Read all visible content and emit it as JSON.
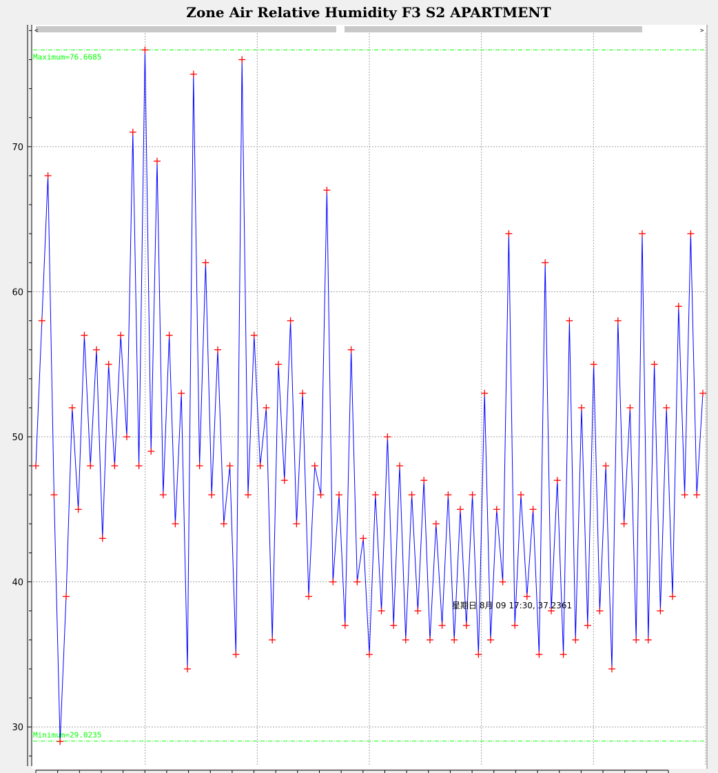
{
  "window": {
    "title": "Zone Air Relative Humidity  F3 S2 APARTMENT"
  },
  "scrollbar": {
    "left_arrow": "<",
    "right_arrow": ">"
  },
  "colors": {
    "series": "#0000ff",
    "marker": "#ff0000",
    "reference": "#00ff00",
    "grid": "#a0a0a0",
    "plot_background": "#ffffff"
  },
  "chart_data": {
    "type": "line",
    "title": "Zone Air Relative Humidity  F3 S2 APARTMENT",
    "xlabel": "",
    "ylabel": "",
    "ylim": [
      27.3,
      78.4
    ],
    "yticks": [
      30,
      40,
      50,
      60,
      70
    ],
    "grid": true,
    "marker": "+",
    "reference_lines": [
      {
        "label": "Maximum=76.6685",
        "value": 76.6685
      },
      {
        "label": "Minimum=29.0235",
        "value": 29.0235
      }
    ],
    "cursor_readout": "星期日 8月 09 17:30, 37.2361",
    "series": [
      {
        "values": [
          48,
          58,
          68,
          46,
          29.0,
          39,
          52,
          45,
          57,
          48,
          56,
          43,
          55,
          48,
          57,
          50,
          71,
          48,
          76.6685,
          49,
          69,
          46,
          57,
          44,
          53,
          34,
          75,
          48,
          62,
          46,
          56,
          44,
          48,
          35,
          76,
          46,
          57,
          48,
          52,
          36,
          55,
          47,
          58,
          44,
          53,
          39,
          48,
          46,
          67,
          40,
          46,
          37,
          56,
          40,
          43,
          35,
          46,
          38,
          50,
          37,
          48,
          36,
          46,
          38,
          47,
          36,
          44,
          37,
          46,
          36,
          45,
          37,
          46,
          35,
          53,
          36,
          45,
          40,
          64,
          37,
          46,
          39,
          45,
          35,
          62,
          38,
          47,
          35,
          58,
          36,
          52,
          37,
          55,
          38,
          48,
          34,
          58,
          44,
          52,
          36,
          64,
          36,
          55,
          38,
          52,
          39,
          59,
          46,
          64,
          46,
          53
        ]
      }
    ]
  }
}
